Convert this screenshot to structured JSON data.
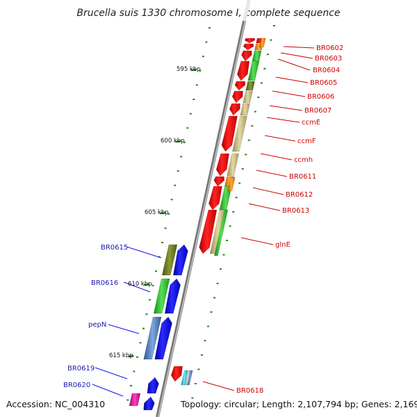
{
  "title": "Brucella suis 1330 chromosome I, complete sequence",
  "accession": "Accession: NC_004310",
  "topology": "Topology: circular; Length: 2,107,794 bp; Genes: 2,169",
  "scale_labels": [
    "595 kbp",
    "600 kbp",
    "605 kbp",
    "610 kbp",
    "615 kbp"
  ],
  "right_labels": [
    "BR0602",
    "BR0603",
    "BR0604",
    "BR0605",
    "BR0606",
    "BR0607",
    "ccmE",
    "ccmF",
    "ccmh",
    "BR0611",
    "BR0612",
    "BR0613",
    "glnE",
    "BR0618"
  ],
  "left_labels": [
    "BR0615",
    "BR0616",
    "pepN",
    "BR0619",
    "BR0620"
  ],
  "colors": {
    "forward_gene": "#ee1111",
    "reverse_gene": "#1111ee",
    "right_label": "#cc0000",
    "left_label": "#1a1aaa",
    "backbone": "#8a8a8a",
    "tick": "#1a8a1a",
    "cog_green": "#33cc33",
    "cog_olive": "#6b7a22",
    "cog_khaki": "#c8bd80",
    "cog_orange": "#ff8800",
    "cog_steel": "#4a7ebb",
    "cog_cyan": "#22ccdd",
    "cog_magenta": "#dd1199"
  }
}
